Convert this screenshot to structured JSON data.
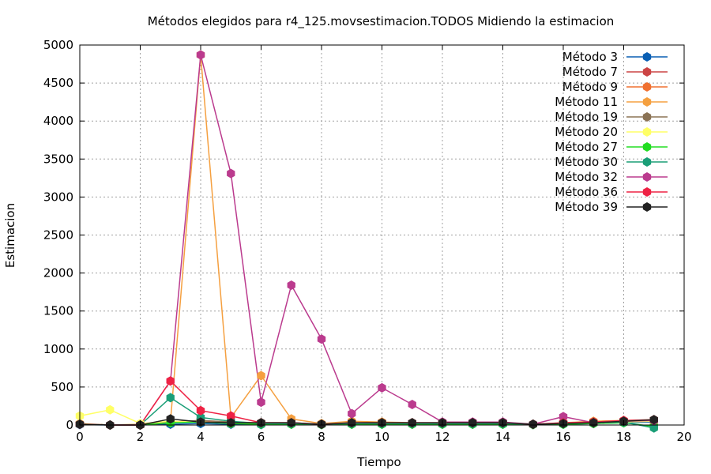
{
  "chart_data": {
    "type": "line",
    "title": "Métodos elegidos para r4_125.movsestimacion.TODOS Midiendo la estimacion",
    "xlabel": "Tiempo",
    "ylabel": "Estimacion",
    "xlim": [
      0,
      20
    ],
    "ylim": [
      0,
      5000
    ],
    "xticks": [
      0,
      2,
      4,
      6,
      8,
      10,
      12,
      14,
      16,
      18,
      20
    ],
    "yticks": [
      0,
      500,
      1000,
      1500,
      2000,
      2500,
      3000,
      3500,
      4000,
      4500,
      5000
    ],
    "grid": true,
    "legend_position": "top-right",
    "x": [
      0,
      1,
      2,
      3,
      4,
      5,
      6,
      7,
      8,
      9,
      10,
      11,
      12,
      13,
      14,
      15,
      16,
      17,
      18,
      19
    ],
    "series": [
      {
        "name": "Método 3",
        "color": "#0a5fb4",
        "values": [
          5,
          0,
          0,
          10,
          20,
          10,
          5,
          10,
          5,
          10,
          10,
          10,
          10,
          10,
          10,
          5,
          10,
          20,
          30,
          40
        ]
      },
      {
        "name": "Método 7",
        "color": "#cc4444",
        "values": [
          10,
          0,
          0,
          30,
          50,
          30,
          20,
          20,
          10,
          20,
          20,
          20,
          20,
          20,
          20,
          10,
          20,
          40,
          50,
          60
        ]
      },
      {
        "name": "Método 9",
        "color": "#f07030",
        "values": [
          10,
          0,
          0,
          40,
          60,
          40,
          30,
          30,
          10,
          20,
          20,
          20,
          20,
          20,
          20,
          10,
          20,
          40,
          50,
          60
        ]
      },
      {
        "name": "Método 11",
        "color": "#f5a040",
        "values": [
          20,
          0,
          10,
          50,
          4870,
          100,
          650,
          80,
          20,
          50,
          40,
          30,
          30,
          30,
          20,
          10,
          30,
          50,
          60,
          70
        ]
      },
      {
        "name": "Método 19",
        "color": "#8b7355",
        "values": [
          10,
          0,
          0,
          40,
          60,
          40,
          20,
          20,
          10,
          20,
          20,
          20,
          20,
          20,
          20,
          10,
          20,
          40,
          50,
          60
        ]
      },
      {
        "name": "Método 20",
        "color": "#ffff66",
        "values": [
          120,
          200,
          20,
          50,
          40,
          20,
          20,
          20,
          10,
          20,
          20,
          20,
          20,
          20,
          20,
          10,
          20,
          30,
          40,
          50
        ]
      },
      {
        "name": "Método 27",
        "color": "#22dd22",
        "values": [
          10,
          0,
          0,
          30,
          40,
          20,
          10,
          10,
          5,
          10,
          10,
          10,
          10,
          10,
          10,
          5,
          10,
          20,
          30,
          -20
        ]
      },
      {
        "name": "Método 30",
        "color": "#1a9e77",
        "values": [
          10,
          0,
          0,
          360,
          100,
          50,
          20,
          20,
          10,
          20,
          20,
          20,
          20,
          20,
          20,
          10,
          20,
          30,
          40,
          -40
        ]
      },
      {
        "name": "Método 32",
        "color": "#bb3b8e",
        "values": [
          10,
          0,
          0,
          580,
          4870,
          3310,
          300,
          1840,
          1130,
          150,
          490,
          270,
          40,
          40,
          40,
          10,
          110,
          30,
          50,
          60
        ]
      },
      {
        "name": "Método 36",
        "color": "#ee2244",
        "values": [
          10,
          0,
          0,
          580,
          190,
          120,
          30,
          30,
          10,
          30,
          30,
          30,
          30,
          30,
          30,
          10,
          30,
          40,
          60,
          70
        ]
      },
      {
        "name": "Método 39",
        "color": "#222222",
        "values": [
          10,
          0,
          0,
          80,
          40,
          30,
          30,
          30,
          10,
          30,
          30,
          30,
          30,
          30,
          30,
          10,
          20,
          30,
          50,
          70
        ]
      }
    ]
  }
}
